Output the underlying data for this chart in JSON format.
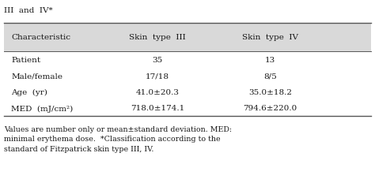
{
  "title_line": "III  and  IV*",
  "col_headers": [
    "Characteristic",
    "Skin  type  III",
    "Skin  type  IV"
  ],
  "rows": [
    [
      "Patient",
      "35",
      "13"
    ],
    [
      "Male/female",
      "17/18",
      "8/5"
    ],
    [
      "Age  (yr)",
      "41.0±20.3",
      "35.0±18.2"
    ],
    [
      "MED  (mJ/cm²)",
      "718.0±174.1",
      "794.6±220.0"
    ]
  ],
  "footnote": "Values are number only or mean±standard deviation. MED:\nminimal erythema dose.  *Classification according to the\nstandard of Fitzpatrick skin type III, IV.",
  "header_bg": "#d9d9d9",
  "table_bg": "#ffffff",
  "text_color": "#1a1a1a",
  "line_color": "#555555",
  "font_size": 7.5,
  "header_font_size": 7.5,
  "footnote_font_size": 6.8
}
